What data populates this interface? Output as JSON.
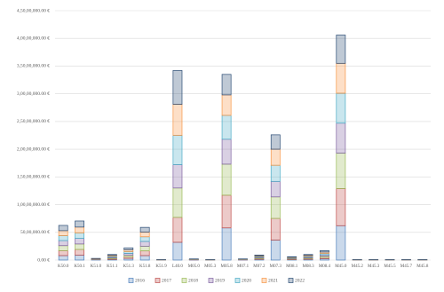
{
  "chart_data": {
    "type": "stacked_bar",
    "categories": [
      "K50.0",
      "K50.1",
      "K51.0",
      "K51.1",
      "K51.3",
      "K51.8",
      "K51.9",
      "L40.0",
      "M05.0",
      "M05.3",
      "M05.8",
      "M07.1",
      "M07.2",
      "M07.3",
      "M08.1",
      "M08.3",
      "M08.4",
      "M45.0",
      "M45.2",
      "M45.3",
      "M45.5",
      "M45.7",
      "M45.8"
    ],
    "series": [
      {
        "name": "2016",
        "color": "#4f81bd",
        "values": [
          800000,
          900000,
          50000,
          120000,
          300000,
          800000,
          10000,
          3200000,
          30000,
          10000,
          5800000,
          30000,
          130000,
          3600000,
          90000,
          140000,
          240000,
          6200000,
          10000,
          10000,
          10000,
          10000,
          10000
        ]
      },
      {
        "name": "2017",
        "color": "#c0504d",
        "values": [
          900000,
          1000000,
          50000,
          140000,
          300000,
          850000,
          10000,
          4500000,
          30000,
          10000,
          5900000,
          30000,
          130000,
          3900000,
          90000,
          140000,
          240000,
          6700000,
          10000,
          10000,
          10000,
          10000,
          10000
        ]
      },
      {
        "name": "2018",
        "color": "#9bbb59",
        "values": [
          900000,
          1000000,
          40000,
          140000,
          300000,
          850000,
          10000,
          5300000,
          30000,
          10000,
          5600000,
          30000,
          130000,
          3900000,
          90000,
          140000,
          240000,
          6400000,
          10000,
          10000,
          10000,
          10000,
          10000
        ]
      },
      {
        "name": "2019",
        "color": "#8064a2",
        "values": [
          900000,
          1000000,
          40000,
          150000,
          300000,
          850000,
          10000,
          4200000,
          30000,
          10000,
          4500000,
          30000,
          130000,
          2800000,
          90000,
          140000,
          240000,
          5400000,
          10000,
          10000,
          10000,
          10000,
          10000
        ]
      },
      {
        "name": "2020",
        "color": "#4bacc6",
        "values": [
          900000,
          1000000,
          40000,
          150000,
          330000,
          850000,
          10000,
          5300000,
          30000,
          10000,
          4300000,
          30000,
          130000,
          2900000,
          80000,
          140000,
          240000,
          5400000,
          10000,
          10000,
          10000,
          10000,
          10000
        ]
      },
      {
        "name": "2021",
        "color": "#f79646",
        "values": [
          900000,
          1050000,
          40000,
          150000,
          330000,
          850000,
          10000,
          5600000,
          30000,
          10000,
          3700000,
          30000,
          130000,
          2900000,
          80000,
          150000,
          250000,
          5400000,
          10000,
          10000,
          10000,
          10000,
          10000
        ]
      },
      {
        "name": "2022",
        "color": "#2c4d75",
        "values": [
          950000,
          1100000,
          40000,
          150000,
          340000,
          850000,
          10000,
          6100000,
          30000,
          10000,
          3700000,
          30000,
          120000,
          2600000,
          80000,
          150000,
          250000,
          5100000,
          10000,
          10000,
          10000,
          10000,
          10000
        ]
      }
    ],
    "ylim": [
      0,
      45000000
    ],
    "yticks": [
      {
        "value": 0,
        "label": "0.00 €"
      },
      {
        "value": 5000000,
        "label": "50,00,000.00 €"
      },
      {
        "value": 10000000,
        "label": "1,00,00,000.00 €"
      },
      {
        "value": 15000000,
        "label": "1,50,00,000.00 €"
      },
      {
        "value": 20000000,
        "label": "2,00,00,000.00 €"
      },
      {
        "value": 25000000,
        "label": "2,50,00,000.00 €"
      },
      {
        "value": 30000000,
        "label": "3,00,00,000.00 €"
      },
      {
        "value": 35000000,
        "label": "3,50,00,000.00 €"
      },
      {
        "value": 40000000,
        "label": "4,00,00,000.00 €"
      },
      {
        "value": 45000000,
        "label": "4,50,00,000.00 €"
      }
    ],
    "grid": true,
    "legend": "bottom"
  }
}
